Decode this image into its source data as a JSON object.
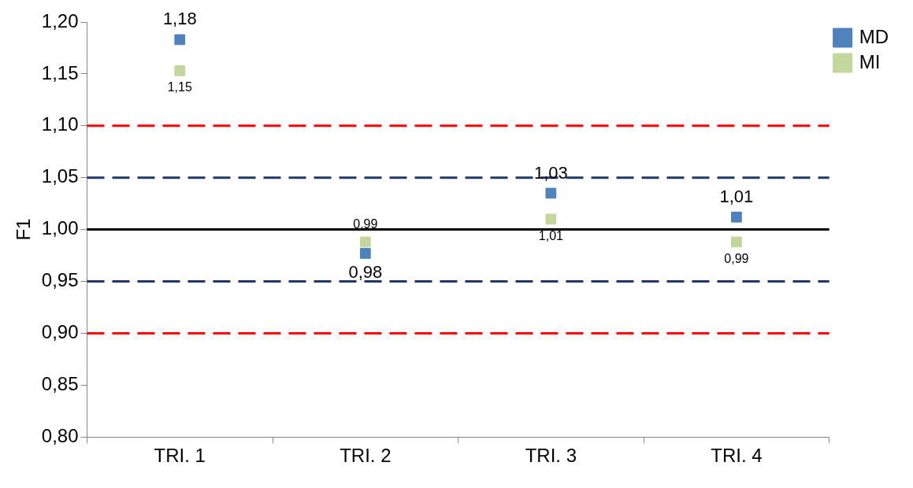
{
  "chart_data": {
    "type": "scatter",
    "ylabel": "F1",
    "categories": [
      "TRI. 1",
      "TRI. 2",
      "TRI. 3",
      "TRI. 4"
    ],
    "series": [
      {
        "name": "MD",
        "color": "#4f81bd",
        "values": [
          1.183,
          0.977,
          1.035,
          1.012
        ],
        "value_labels": [
          "1,18",
          "0,98",
          "1,03",
          "1,01"
        ]
      },
      {
        "name": "MI",
        "color": "#c3d69b",
        "values": [
          1.153,
          0.988,
          1.01,
          0.988
        ],
        "value_labels": [
          "1,15",
          "0,99",
          "1,01",
          "0,99"
        ]
      }
    ],
    "ylim": [
      0.8,
      1.2
    ],
    "yticks": [
      {
        "value": 0.8,
        "label": "0,80"
      },
      {
        "value": 0.85,
        "label": "0,85"
      },
      {
        "value": 0.9,
        "label": "0,90"
      },
      {
        "value": 0.95,
        "label": "0,95"
      },
      {
        "value": 1.0,
        "label": "1,00"
      },
      {
        "value": 1.05,
        "label": "1,05"
      },
      {
        "value": 1.1,
        "label": "1,10"
      },
      {
        "value": 1.15,
        "label": "1,15"
      },
      {
        "value": 1.2,
        "label": "1,20"
      }
    ],
    "ref_lines": [
      {
        "axis": "y",
        "value": 1.1,
        "color": "#ff0000",
        "line_style": "dashed"
      },
      {
        "axis": "y",
        "value": 1.05,
        "color": "#1f3864",
        "line_style": "dashed"
      },
      {
        "axis": "y",
        "value": 1.0,
        "color": "#000000",
        "line_style": "solid"
      },
      {
        "axis": "y",
        "value": 0.95,
        "color": "#1f3864",
        "line_style": "dashed"
      },
      {
        "axis": "y",
        "value": 0.9,
        "color": "#ff0000",
        "line_style": "dashed"
      }
    ],
    "grid": false,
    "legend": "right",
    "marker": "square"
  }
}
